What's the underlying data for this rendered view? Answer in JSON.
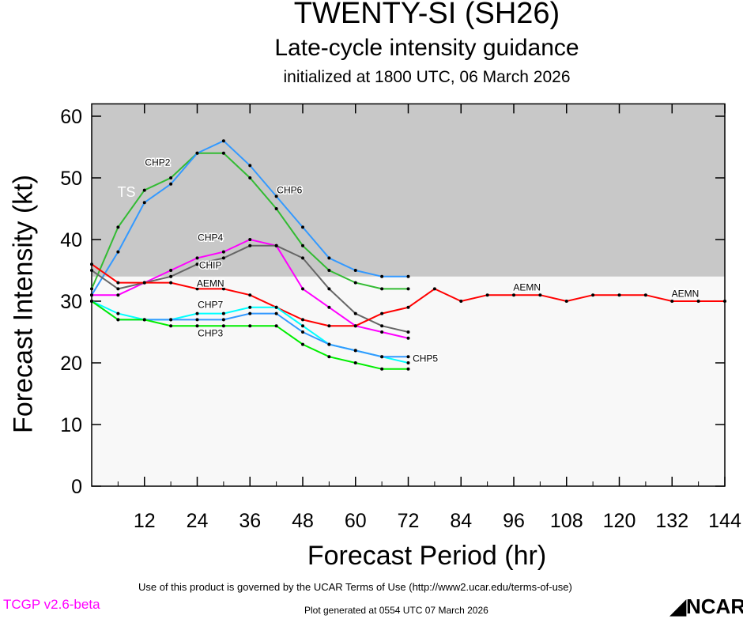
{
  "title": "TWENTY-SI (SH26)",
  "subtitle": "Late-cycle intensity guidance",
  "init": "initialized at 1800 UTC, 06 March 2026",
  "footer": {
    "terms": "Use of this product is governed by the UCAR Terms of Use (http://www2.ucar.edu/terms-of-use)",
    "generated": "Plot generated at 0554 UTC   07 March 2026",
    "version": "TCGP v2.6-beta",
    "logo": "NCAR"
  },
  "chart_data": {
    "type": "line",
    "xlabel": "Forecast Period (hr)",
    "ylabel": "Forecast Intensity (kt)",
    "xlim": [
      0,
      144
    ],
    "ylim": [
      0,
      62
    ],
    "xticks": [
      12,
      24,
      36,
      48,
      60,
      72,
      84,
      96,
      108,
      120,
      132,
      144
    ],
    "yticks": [
      0,
      10,
      20,
      30,
      40,
      50,
      60
    ],
    "shading": {
      "label": "TS",
      "from": 34,
      "color": "#c8c8c8",
      "below_color": "#f8f8f8"
    },
    "series": [
      {
        "name": "CHP2",
        "color": "#33bb33",
        "label_at": 18,
        "x": [
          0,
          6,
          12,
          18,
          24,
          30,
          36,
          42,
          48,
          54,
          60,
          66,
          72
        ],
        "values": [
          32,
          42,
          48,
          50,
          54,
          54,
          50,
          45,
          39,
          35,
          33,
          32,
          32
        ]
      },
      {
        "name": "CHP6",
        "color": "#3399ff",
        "label_at": 42,
        "x": [
          0,
          6,
          12,
          18,
          24,
          30,
          36,
          42,
          48,
          54,
          60,
          66,
          72
        ],
        "values": [
          31,
          38,
          46,
          49,
          54,
          56,
          52,
          47,
          42,
          37,
          35,
          34,
          34
        ]
      },
      {
        "name": "CHP4",
        "color": "#ff00ff",
        "label_at": 30,
        "x": [
          0,
          6,
          12,
          18,
          24,
          30,
          36,
          42,
          48,
          54,
          60,
          66,
          72
        ],
        "values": [
          31,
          31,
          33,
          35,
          37,
          38,
          40,
          39,
          32,
          29,
          26,
          25,
          24
        ]
      },
      {
        "name": "CHIP",
        "color": "#666666",
        "label_at": 54,
        "x": [
          0,
          6,
          12,
          18,
          24,
          30,
          36,
          42,
          48,
          54,
          60,
          66,
          72
        ],
        "values": [
          35,
          32,
          33,
          34,
          36,
          37,
          39,
          39,
          37,
          32,
          28,
          26,
          25
        ]
      },
      {
        "name": "AEMN",
        "color": "#ff0000",
        "label_at": 30,
        "x": [
          0,
          6,
          12,
          18,
          24,
          30,
          36,
          42,
          48,
          54,
          60,
          66,
          72,
          78,
          84,
          90,
          96,
          102,
          108,
          114,
          120,
          126,
          132,
          138,
          144
        ],
        "values": [
          36,
          33,
          33,
          33,
          32,
          32,
          31,
          29,
          27,
          26,
          26,
          28,
          29,
          32,
          30,
          31,
          31,
          31,
          30,
          31,
          31,
          31,
          30,
          30,
          30
        ]
      },
      {
        "name": "CHP7",
        "color": "#00ffff",
        "label_at": 30,
        "x": [
          0,
          6,
          12,
          18,
          24,
          30,
          36,
          42,
          48,
          54,
          60,
          66,
          72
        ],
        "values": [
          30,
          28,
          27,
          27,
          28,
          28,
          29,
          29,
          26,
          23,
          22,
          21,
          20
        ]
      },
      {
        "name": "CHP5",
        "color": "#3399ff",
        "label_at": 30,
        "x": [
          0,
          6,
          12,
          18,
          24,
          30,
          36,
          42,
          48,
          54,
          60,
          66,
          72
        ],
        "values": [
          30,
          27,
          27,
          27,
          27,
          27,
          28,
          28,
          25,
          23,
          22,
          21,
          21
        ]
      },
      {
        "name": "CHP3",
        "color": "#00ee00",
        "label_at": 30,
        "x": [
          0,
          6,
          12,
          18,
          24,
          30,
          36,
          42,
          48,
          54,
          60,
          66,
          72
        ],
        "values": [
          30,
          27,
          27,
          26,
          26,
          26,
          26,
          26,
          23,
          21,
          20,
          19,
          19
        ]
      }
    ]
  }
}
